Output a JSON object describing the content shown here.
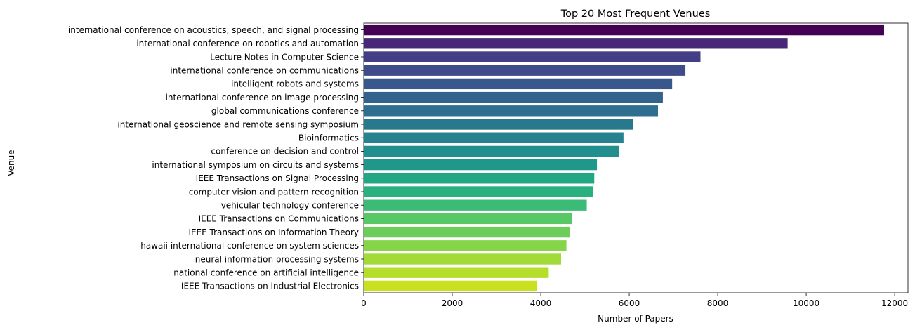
{
  "chart_data": {
    "type": "bar",
    "orientation": "horizontal",
    "title": "Top 20 Most Frequent Venues",
    "xlabel": "Number of Papers",
    "ylabel": "Venue",
    "xlim": [
      0,
      12300
    ],
    "xticks": [
      0,
      2000,
      4000,
      6000,
      8000,
      10000,
      12000
    ],
    "grid": false,
    "legend": "none",
    "colormap": "viridis",
    "categories": [
      "international conference on acoustics, speech, and signal processing",
      "international conference on robotics and automation",
      "Lecture Notes in Computer Science",
      "international conference on communications",
      "intelligent robots and systems",
      "international conference on image processing",
      "global communications conference",
      "international geoscience and remote sensing symposium",
      "Bioinformatics",
      "conference on decision and control",
      "international symposium on circuits and systems",
      "IEEE Transactions on Signal Processing",
      "computer vision and pattern recognition",
      "vehicular technology conference",
      "IEEE Transactions on Communications",
      "IEEE Transactions on Information Theory",
      "hawaii international conference on system sciences",
      "neural information processing systems",
      "national conference on artificial intelligence",
      "IEEE Transactions on Industrial Electronics"
    ],
    "values": [
      11760,
      9580,
      7610,
      7270,
      6970,
      6760,
      6650,
      6090,
      5870,
      5770,
      5270,
      5210,
      5180,
      5040,
      4710,
      4660,
      4580,
      4460,
      4180,
      3920
    ],
    "colors": [
      "#440154",
      "#472877",
      "#433e85",
      "#3e4c8a",
      "#38588c",
      "#33638d",
      "#2e6e8e",
      "#2a788e",
      "#26828e",
      "#218f8d",
      "#1f988b",
      "#22a785",
      "#2ab07f",
      "#3bbb75",
      "#58c765",
      "#6ccd5a",
      "#86d549",
      "#a2da37",
      "#b5de2b",
      "#c8e020"
    ]
  }
}
